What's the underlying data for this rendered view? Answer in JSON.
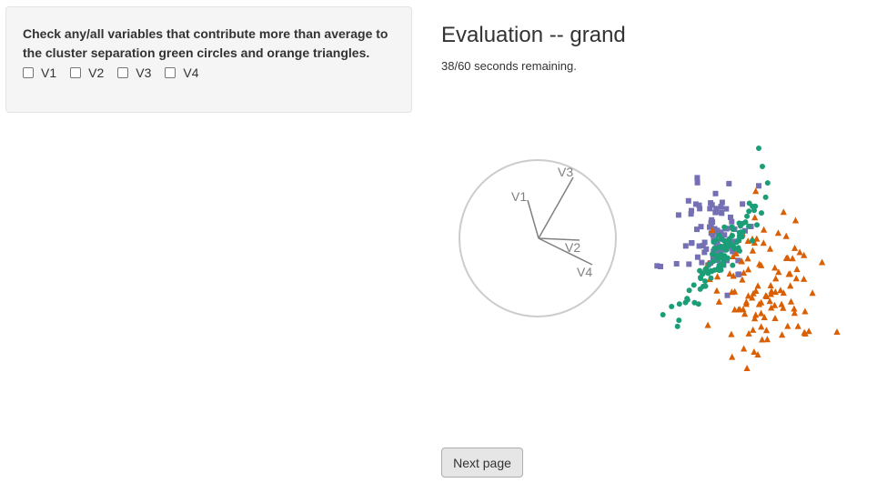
{
  "question": "Check any/all variables that contribute more than average to the cluster separation green circles and orange triangles.",
  "options": [
    "V1",
    "V2",
    "V3",
    "V4"
  ],
  "title": "Evaluation -- grand",
  "timer": "38/60 seconds remaining.",
  "next_button": "Next page",
  "colors": {
    "green": "#1b9e77",
    "orange": "#d95f02",
    "purple": "#7570b3",
    "axis": "#808080",
    "circle": "#cccccc"
  },
  "axes_labels": [
    "V1",
    "V2",
    "V3",
    "V4"
  ]
}
